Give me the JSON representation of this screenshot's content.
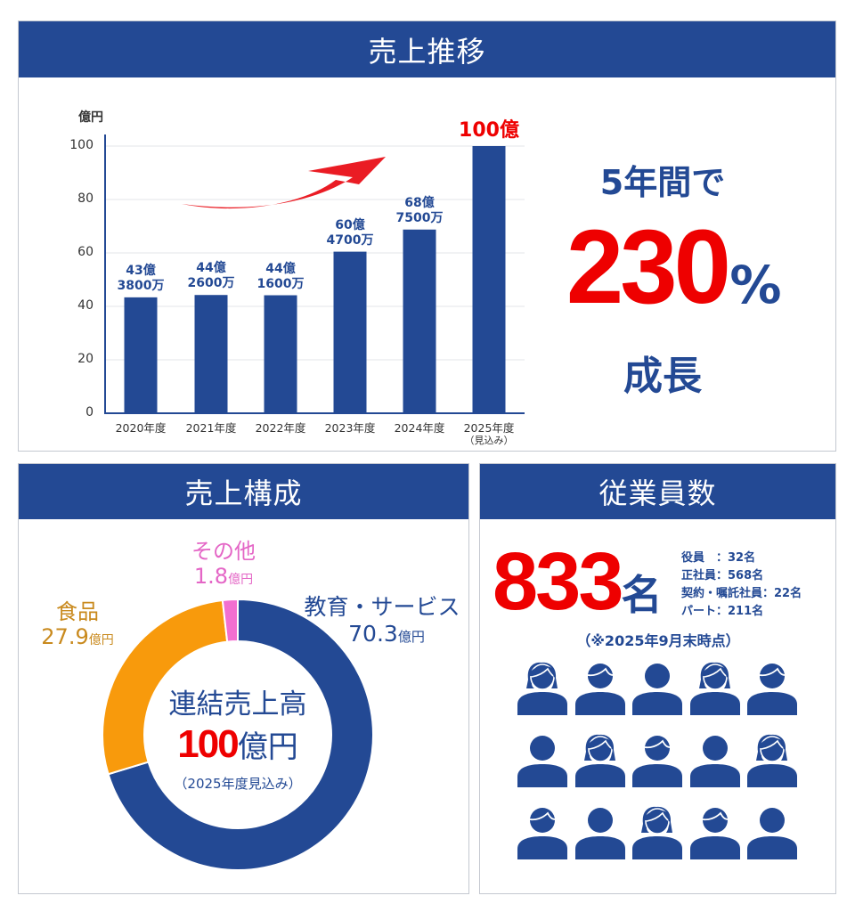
{
  "colors": {
    "navy": "#234994",
    "red": "#ee0000",
    "orange": "#f89a0c",
    "pink": "#f26fd0",
    "food_text": "#c98a1e",
    "other_text": "#e466c6",
    "gridline": "#e3e5ea"
  },
  "sales_trend": {
    "title": "売上推移",
    "unit_label": "億円",
    "highlight": {
      "line1": "5年間で",
      "number": "230",
      "percent": "%",
      "line3": "成長"
    }
  },
  "chart_data": [
    {
      "type": "bar",
      "title": "売上推移",
      "ylabel": "億円",
      "xlabel": "",
      "ylim": [
        0,
        100
      ],
      "yticks": [
        0,
        20,
        40,
        60,
        80,
        100
      ],
      "grid": true,
      "categories": [
        "2020年度",
        "2021年度",
        "2022年度",
        "2023年度",
        "2024年度",
        "2025年度（見込み）"
      ],
      "values": [
        43.38,
        44.26,
        44.16,
        60.47,
        68.75,
        100
      ],
      "data_labels": [
        [
          "43億",
          "3800万"
        ],
        [
          "44億",
          "2600万"
        ],
        [
          "44億",
          "1600万"
        ],
        [
          "60億",
          "4700万"
        ],
        [
          "68億",
          "7500万"
        ],
        [
          "100億"
        ]
      ],
      "annotation": "5年間で230%成長"
    },
    {
      "type": "pie",
      "title": "売上構成",
      "donut": true,
      "center_text": [
        "連結売上高",
        "100億円",
        "（2025年度見込み）"
      ],
      "labels": [
        "教育・サービス",
        "食品",
        "その他"
      ],
      "values": [
        70.3,
        27.9,
        1.8
      ],
      "unit": "億円",
      "colors": [
        "#234994",
        "#f89a0c",
        "#f26fd0"
      ]
    }
  ],
  "chart": {
    "bars": [
      {
        "year": "2020年度",
        "sub": "",
        "l1": "43億",
        "l2": "3800万",
        "value": 43.38
      },
      {
        "year": "2021年度",
        "sub": "",
        "l1": "44億",
        "l2": "2600万",
        "value": 44.26
      },
      {
        "year": "2022年度",
        "sub": "",
        "l1": "44億",
        "l2": "1600万",
        "value": 44.16
      },
      {
        "year": "2023年度",
        "sub": "",
        "l1": "60億",
        "l2": "4700万",
        "value": 60.47
      },
      {
        "year": "2024年度",
        "sub": "",
        "l1": "68億",
        "l2": "7500万",
        "value": 68.75
      },
      {
        "year": "2025年度",
        "sub": "（見込み）",
        "l1": "100億",
        "l2": "",
        "value": 100
      }
    ],
    "yticks": [
      "100",
      "80",
      "60",
      "40",
      "20",
      "0"
    ]
  },
  "composition": {
    "title": "売上構成",
    "segments": {
      "education": {
        "name": "教育・サービス",
        "value": "70.3",
        "unit": "億円"
      },
      "food": {
        "name": "食品",
        "value": "27.9",
        "unit": "億円"
      },
      "other": {
        "name": "その他",
        "value": "1.8",
        "unit": "億円"
      }
    },
    "center": {
      "line1": "連結売上高",
      "amount": "100",
      "amount_unit": "億円",
      "note": "（2025年度見込み）"
    }
  },
  "employees": {
    "title": "従業員数",
    "total": "833",
    "total_unit": "名",
    "breakdown": [
      "役員　：32名",
      "正社員：568名",
      "契約・嘱託社員：22名",
      "パート：211名"
    ],
    "as_of": "（※2025年9月末時点）",
    "icons": [
      [
        "female",
        "male",
        "neutral",
        "female",
        "male"
      ],
      [
        "neutral",
        "female",
        "male",
        "neutral",
        "female"
      ],
      [
        "male",
        "neutral",
        "female",
        "male",
        "neutral"
      ]
    ]
  }
}
